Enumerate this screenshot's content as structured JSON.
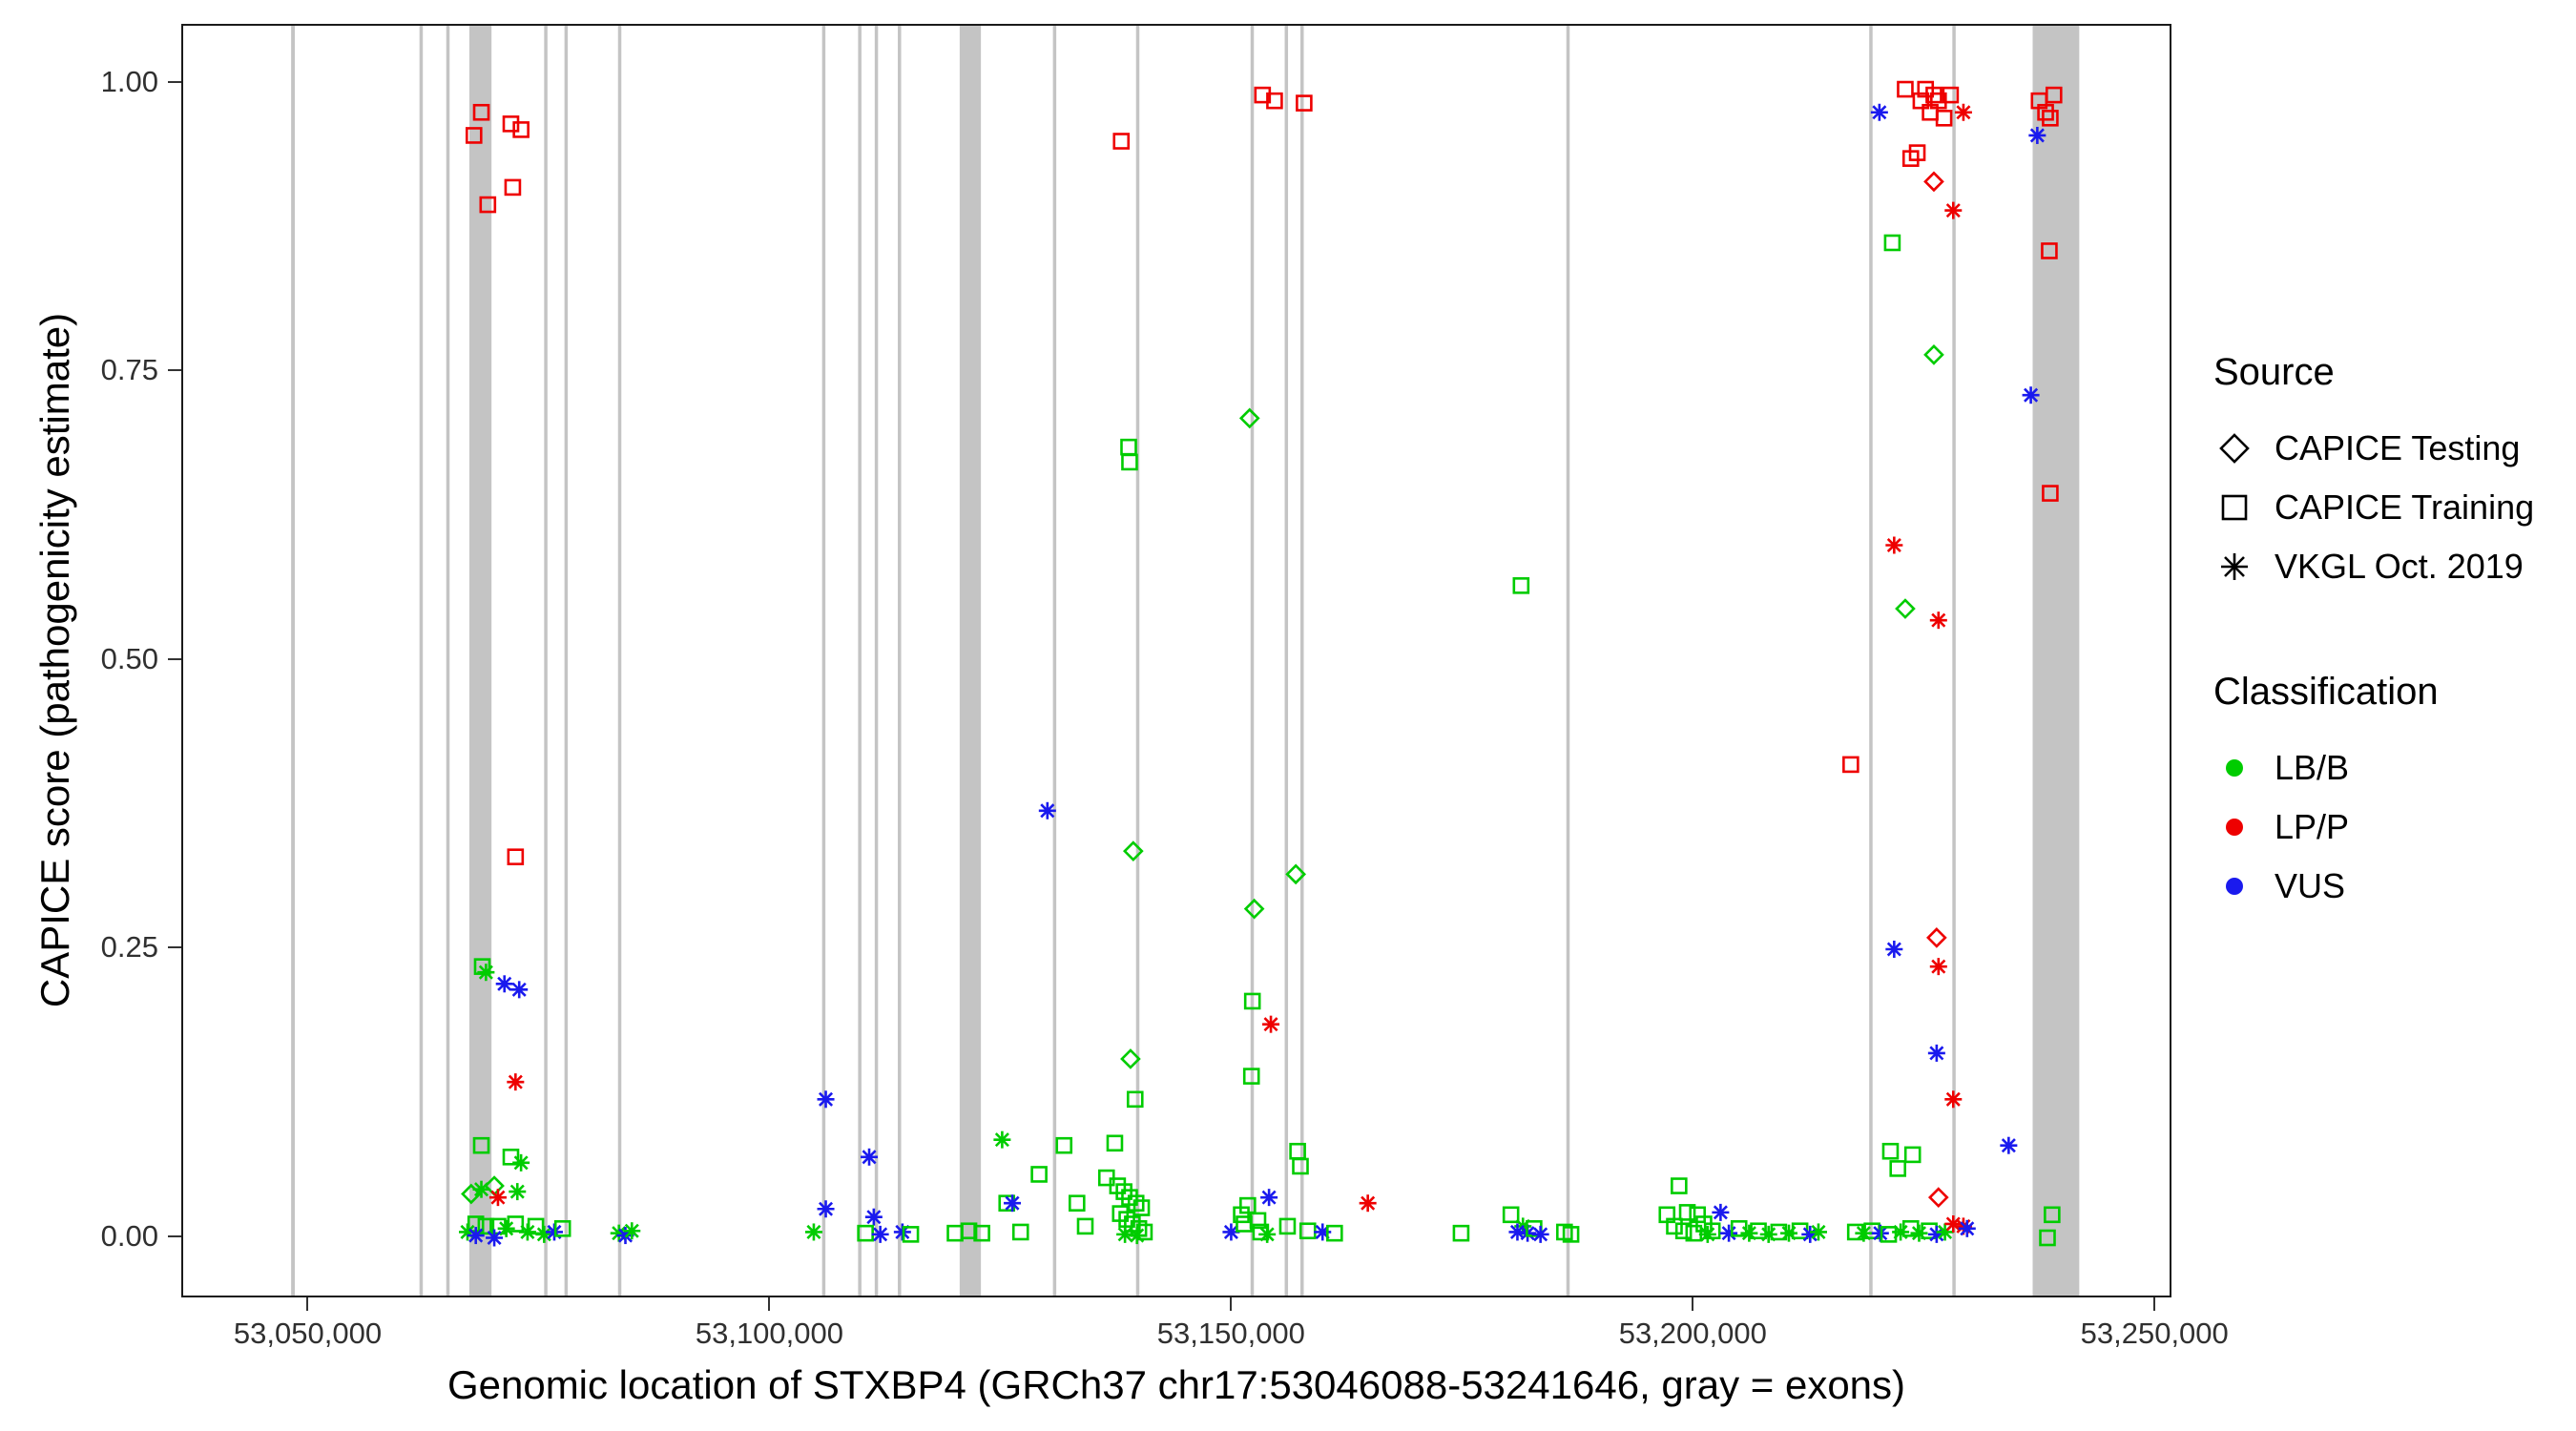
{
  "chart_data": {
    "type": "scatter",
    "title": "",
    "xlabel": "Genomic location of STXBP4 (GRCh37 chr17:53046088-53241646, gray = exons)",
    "ylabel": "CAPICE score (pathogenicity estimate)",
    "xlim": [
      53036310,
      53251424
    ],
    "ylim": [
      -0.05,
      1.05
    ],
    "grid": "off",
    "xticks": [
      {
        "value": 53050000,
        "label": "53,050,000"
      },
      {
        "value": 53100000,
        "label": "53,100,000"
      },
      {
        "value": 53150000,
        "label": "53,150,000"
      },
      {
        "value": 53200000,
        "label": "53,200,000"
      },
      {
        "value": 53250000,
        "label": "53,250,000"
      }
    ],
    "yticks": [
      {
        "value": 0.0,
        "label": "0.00"
      },
      {
        "value": 0.25,
        "label": "0.25"
      },
      {
        "value": 0.5,
        "label": "0.50"
      },
      {
        "value": 0.75,
        "label": "0.75"
      },
      {
        "value": 1.0,
        "label": "1.00"
      }
    ],
    "legend": {
      "position": "right",
      "source": {
        "title": "Source",
        "items": [
          {
            "label": "CAPICE Testing",
            "shape": "diamond",
            "source_key": "testing"
          },
          {
            "label": "CAPICE Training",
            "shape": "square",
            "source_key": "training"
          },
          {
            "label": "VKGL Oct. 2019",
            "shape": "asterisk",
            "source_key": "vkgl"
          }
        ]
      },
      "classification": {
        "title": "Classification",
        "items": [
          {
            "label": "LB/B",
            "color": "#00cc00"
          },
          {
            "label": "LP/P",
            "color": "#ee0000"
          },
          {
            "label": "VUS",
            "color": "#1a1aee"
          }
        ]
      }
    },
    "exon_color": "#c4c4c4",
    "exons": [
      [
        53048000,
        53048400
      ],
      [
        53061900,
        53062200
      ],
      [
        53064800,
        53065100
      ],
      [
        53067300,
        53069700
      ],
      [
        53075400,
        53075700
      ],
      [
        53077600,
        53077900
      ],
      [
        53083400,
        53083700
      ],
      [
        53105500,
        53105800
      ],
      [
        53109400,
        53109700
      ],
      [
        53111200,
        53111500
      ],
      [
        53113700,
        53114000
      ],
      [
        53120400,
        53122700
      ],
      [
        53130500,
        53130800
      ],
      [
        53139500,
        53139800
      ],
      [
        53151900,
        53152200
      ],
      [
        53155600,
        53155900
      ],
      [
        53157300,
        53157600
      ],
      [
        53186100,
        53186400
      ],
      [
        53218900,
        53219200
      ],
      [
        53227900,
        53228200
      ],
      [
        53236600,
        53241646
      ]
    ],
    "point_format": [
      "genomic_position",
      "capice_score",
      "source",
      "classification"
    ],
    "points": [
      [
        53068600,
        0.975,
        "training",
        "LP/P"
      ],
      [
        53067800,
        0.955,
        "training",
        "LP/P"
      ],
      [
        53069300,
        0.895,
        "training",
        "LP/P"
      ],
      [
        53071800,
        0.965,
        "training",
        "LP/P"
      ],
      [
        53072900,
        0.96,
        "training",
        "LP/P"
      ],
      [
        53072000,
        0.91,
        "training",
        "LP/P"
      ],
      [
        53072300,
        0.33,
        "training",
        "LP/P"
      ],
      [
        53068700,
        0.235,
        "training",
        "LB/B"
      ],
      [
        53069100,
        0.23,
        "vkgl",
        "LB/B"
      ],
      [
        53071100,
        0.22,
        "vkgl",
        "VUS"
      ],
      [
        53072700,
        0.215,
        "vkgl",
        "VUS"
      ],
      [
        53072300,
        0.135,
        "vkgl",
        "LP/P"
      ],
      [
        53068600,
        0.08,
        "training",
        "LB/B"
      ],
      [
        53071800,
        0.07,
        "training",
        "LB/B"
      ],
      [
        53072900,
        0.065,
        "vkgl",
        "LB/B"
      ],
      [
        53067500,
        0.038,
        "testing",
        "LB/B"
      ],
      [
        53068600,
        0.042,
        "vkgl",
        "LB/B"
      ],
      [
        53070000,
        0.045,
        "testing",
        "LB/B"
      ],
      [
        53070400,
        0.035,
        "vkgl",
        "LP/P"
      ],
      [
        53072500,
        0.04,
        "vkgl",
        "LB/B"
      ],
      [
        53068000,
        0.012,
        "training",
        "LB/B"
      ],
      [
        53069100,
        0.01,
        "training",
        "LB/B"
      ],
      [
        53067100,
        0.005,
        "vkgl",
        "LB/B"
      ],
      [
        53068000,
        0.002,
        "vkgl",
        "VUS"
      ],
      [
        53070400,
        0.01,
        "training",
        "LB/B"
      ],
      [
        53071300,
        0.008,
        "vkgl",
        "LB/B"
      ],
      [
        53072300,
        0.012,
        "training",
        "LB/B"
      ],
      [
        53070000,
        0.0,
        "vkgl",
        "VUS"
      ],
      [
        53073600,
        0.005,
        "vkgl",
        "LB/B"
      ],
      [
        53074500,
        0.01,
        "training",
        "LB/B"
      ],
      [
        53075400,
        0.003,
        "vkgl",
        "LB/B"
      ],
      [
        53076500,
        0.005,
        "vkgl",
        "VUS"
      ],
      [
        53077400,
        0.008,
        "training",
        "LB/B"
      ],
      [
        53083500,
        0.004,
        "vkgl",
        "LB/B"
      ],
      [
        53084200,
        0.002,
        "vkgl",
        "VUS"
      ],
      [
        53084900,
        0.006,
        "vkgl",
        "LB/B"
      ],
      [
        53105900,
        0.12,
        "vkgl",
        "VUS"
      ],
      [
        53105900,
        0.025,
        "vkgl",
        "VUS"
      ],
      [
        53104600,
        0.005,
        "vkgl",
        "LB/B"
      ],
      [
        53110600,
        0.07,
        "vkgl",
        "VUS"
      ],
      [
        53111100,
        0.018,
        "vkgl",
        "VUS"
      ],
      [
        53110200,
        0.004,
        "training",
        "LB/B"
      ],
      [
        53111800,
        0.003,
        "vkgl",
        "VUS"
      ],
      [
        53114200,
        0.005,
        "vkgl",
        "VUS"
      ],
      [
        53115100,
        0.003,
        "training",
        "LB/B"
      ],
      [
        53119900,
        0.004,
        "training",
        "LB/B"
      ],
      [
        53121400,
        0.006,
        "training",
        "LB/B"
      ],
      [
        53122800,
        0.004,
        "training",
        "LB/B"
      ],
      [
        53125000,
        0.085,
        "vkgl",
        "LB/B"
      ],
      [
        53125500,
        0.03,
        "training",
        "LB/B"
      ],
      [
        53126100,
        0.03,
        "vkgl",
        "VUS"
      ],
      [
        53127000,
        0.005,
        "training",
        "LB/B"
      ],
      [
        53129000,
        0.055,
        "training",
        "LB/B"
      ],
      [
        53129900,
        0.37,
        "vkgl",
        "VUS"
      ],
      [
        53131700,
        0.08,
        "training",
        "LB/B"
      ],
      [
        53133100,
        0.03,
        "training",
        "LB/B"
      ],
      [
        53134000,
        0.01,
        "training",
        "LB/B"
      ],
      [
        53137900,
        0.95,
        "training",
        "LP/P"
      ],
      [
        53138700,
        0.685,
        "training",
        "LB/B"
      ],
      [
        53138800,
        0.672,
        "training",
        "LB/B"
      ],
      [
        53139200,
        0.335,
        "testing",
        "LB/B"
      ],
      [
        53138900,
        0.155,
        "testing",
        "LB/B"
      ],
      [
        53139400,
        0.12,
        "training",
        "LB/B"
      ],
      [
        53137200,
        0.082,
        "training",
        "LB/B"
      ],
      [
        53136300,
        0.052,
        "training",
        "LB/B"
      ],
      [
        53137500,
        0.045,
        "training",
        "LB/B"
      ],
      [
        53138200,
        0.04,
        "training",
        "LB/B"
      ],
      [
        53138800,
        0.035,
        "training",
        "LB/B"
      ],
      [
        53139500,
        0.03,
        "training",
        "LB/B"
      ],
      [
        53140100,
        0.026,
        "training",
        "LB/B"
      ],
      [
        53137800,
        0.021,
        "training",
        "LB/B"
      ],
      [
        53138500,
        0.016,
        "training",
        "LB/B"
      ],
      [
        53139100,
        0.012,
        "training",
        "LB/B"
      ],
      [
        53139800,
        0.008,
        "training",
        "LB/B"
      ],
      [
        53140400,
        0.005,
        "training",
        "LB/B"
      ],
      [
        53138300,
        0.003,
        "vkgl",
        "LB/B"
      ],
      [
        53139600,
        0.002,
        "vkgl",
        "LB/B"
      ],
      [
        53149800,
        0.005,
        "vkgl",
        "VUS"
      ],
      [
        53151800,
        0.71,
        "testing",
        "LB/B"
      ],
      [
        53153200,
        0.99,
        "training",
        "LP/P"
      ],
      [
        53154500,
        0.985,
        "training",
        "LP/P"
      ],
      [
        53157700,
        0.983,
        "training",
        "LP/P"
      ],
      [
        53152300,
        0.285,
        "testing",
        "LB/B"
      ],
      [
        53156800,
        0.315,
        "testing",
        "LB/B"
      ],
      [
        53152100,
        0.205,
        "training",
        "LB/B"
      ],
      [
        53154100,
        0.185,
        "vkgl",
        "LP/P"
      ],
      [
        53152000,
        0.14,
        "training",
        "LB/B"
      ],
      [
        53157000,
        0.075,
        "training",
        "LB/B"
      ],
      [
        53157300,
        0.062,
        "training",
        "LB/B"
      ],
      [
        53153900,
        0.035,
        "vkgl",
        "VUS"
      ],
      [
        53151600,
        0.028,
        "training",
        "LB/B"
      ],
      [
        53150900,
        0.02,
        "training",
        "LB/B"
      ],
      [
        53151200,
        0.012,
        "training",
        "LB/B"
      ],
      [
        53152700,
        0.015,
        "training",
        "LB/B"
      ],
      [
        53153000,
        0.005,
        "training",
        "LB/B"
      ],
      [
        53153700,
        0.003,
        "vkgl",
        "LB/B"
      ],
      [
        53155900,
        0.01,
        "training",
        "LB/B"
      ],
      [
        53158100,
        0.006,
        "training",
        "LB/B"
      ],
      [
        53159700,
        0.005,
        "vkgl",
        "VUS"
      ],
      [
        53161000,
        0.004,
        "training",
        "LB/B"
      ],
      [
        53164600,
        0.03,
        "vkgl",
        "LP/P"
      ],
      [
        53174700,
        0.004,
        "training",
        "LB/B"
      ],
      [
        53181200,
        0.565,
        "training",
        "LB/B"
      ],
      [
        53180100,
        0.02,
        "training",
        "LB/B"
      ],
      [
        53181400,
        0.01,
        "vkgl",
        "LB/B"
      ],
      [
        53180800,
        0.005,
        "vkgl",
        "VUS"
      ],
      [
        53181900,
        0.004,
        "vkgl",
        "VUS"
      ],
      [
        53182600,
        0.008,
        "training",
        "LB/B"
      ],
      [
        53183300,
        0.003,
        "vkgl",
        "VUS"
      ],
      [
        53185900,
        0.005,
        "training",
        "LB/B"
      ],
      [
        53186600,
        0.003,
        "training",
        "LB/B"
      ],
      [
        53198300,
        0.045,
        "training",
        "LB/B"
      ],
      [
        53197000,
        0.02,
        "training",
        "LB/B"
      ],
      [
        53199200,
        0.022,
        "training",
        "LB/B"
      ],
      [
        53200300,
        0.02,
        "training",
        "LB/B"
      ],
      [
        53197800,
        0.01,
        "training",
        "LB/B"
      ],
      [
        53198800,
        0.006,
        "training",
        "LB/B"
      ],
      [
        53199900,
        0.004,
        "training",
        "LB/B"
      ],
      [
        53201000,
        0.012,
        "training",
        "LB/B"
      ],
      [
        53201900,
        0.006,
        "training",
        "LB/B"
      ],
      [
        53202800,
        0.022,
        "vkgl",
        "VUS"
      ],
      [
        53201400,
        0.003,
        "vkgl",
        "LB/B"
      ],
      [
        53203700,
        0.004,
        "vkgl",
        "VUS"
      ],
      [
        53204800,
        0.008,
        "training",
        "LB/B"
      ],
      [
        53205900,
        0.004,
        "vkgl",
        "LB/B"
      ],
      [
        53206900,
        0.006,
        "training",
        "LB/B"
      ],
      [
        53208000,
        0.003,
        "vkgl",
        "LB/B"
      ],
      [
        53209100,
        0.005,
        "training",
        "LB/B"
      ],
      [
        53210200,
        0.004,
        "vkgl",
        "LB/B"
      ],
      [
        53211400,
        0.006,
        "training",
        "LB/B"
      ],
      [
        53212500,
        0.003,
        "vkgl",
        "VUS"
      ],
      [
        53213400,
        0.005,
        "vkgl",
        "LB/B"
      ],
      [
        53216900,
        0.41,
        "training",
        "LP/P"
      ],
      [
        53220000,
        0.975,
        "vkgl",
        "VUS"
      ],
      [
        53221400,
        0.862,
        "training",
        "LB/B"
      ],
      [
        53221600,
        0.6,
        "vkgl",
        "LP/P"
      ],
      [
        53221600,
        0.25,
        "vkgl",
        "VUS"
      ],
      [
        53221200,
        0.075,
        "training",
        "LB/B"
      ],
      [
        53222000,
        0.06,
        "training",
        "LB/B"
      ],
      [
        53222800,
        0.995,
        "training",
        "LP/P"
      ],
      [
        53223400,
        0.935,
        "training",
        "LP/P"
      ],
      [
        53224100,
        0.94,
        "training",
        "LP/P"
      ],
      [
        53224500,
        0.985,
        "training",
        "LP/P"
      ],
      [
        53225000,
        0.995,
        "training",
        "LP/P"
      ],
      [
        53225500,
        0.975,
        "training",
        "LP/P"
      ],
      [
        53225900,
        0.99,
        "training",
        "LP/P"
      ],
      [
        53226400,
        0.985,
        "training",
        "LP/P"
      ],
      [
        53227000,
        0.97,
        "training",
        "LP/P"
      ],
      [
        53227700,
        0.99,
        "training",
        "LP/P"
      ],
      [
        53225900,
        0.915,
        "testing",
        "LP/P"
      ],
      [
        53229100,
        0.975,
        "vkgl",
        "LP/P"
      ],
      [
        53228000,
        0.89,
        "vkgl",
        "LP/P"
      ],
      [
        53225900,
        0.765,
        "testing",
        "LB/B"
      ],
      [
        53222800,
        0.545,
        "testing",
        "LB/B"
      ],
      [
        53226400,
        0.535,
        "vkgl",
        "LP/P"
      ],
      [
        53226200,
        0.26,
        "testing",
        "LP/P"
      ],
      [
        53226400,
        0.235,
        "vkgl",
        "LP/P"
      ],
      [
        53226200,
        0.16,
        "vkgl",
        "VUS"
      ],
      [
        53228000,
        0.12,
        "vkgl",
        "LP/P"
      ],
      [
        53217400,
        0.005,
        "training",
        "LB/B"
      ],
      [
        53218300,
        0.004,
        "vkgl",
        "LB/B"
      ],
      [
        53219200,
        0.006,
        "training",
        "LB/B"
      ],
      [
        53220100,
        0.004,
        "vkgl",
        "VUS"
      ],
      [
        53221000,
        0.003,
        "training",
        "LB/B"
      ],
      [
        53222300,
        0.005,
        "vkgl",
        "LB/B"
      ],
      [
        53223400,
        0.008,
        "training",
        "LB/B"
      ],
      [
        53223600,
        0.072,
        "training",
        "LB/B"
      ],
      [
        53224300,
        0.004,
        "vkgl",
        "LB/B"
      ],
      [
        53225400,
        0.006,
        "training",
        "LB/B"
      ],
      [
        53226200,
        0.003,
        "vkgl",
        "VUS"
      ],
      [
        53226400,
        0.035,
        "testing",
        "LP/P"
      ],
      [
        53227100,
        0.005,
        "vkgl",
        "LB/B"
      ],
      [
        53228000,
        0.012,
        "vkgl",
        "LP/P"
      ],
      [
        53229100,
        0.01,
        "vkgl",
        "LP/P"
      ],
      [
        53229500,
        0.008,
        "vkgl",
        "VUS"
      ],
      [
        53234000,
        0.08,
        "vkgl",
        "VUS"
      ],
      [
        53236400,
        0.73,
        "vkgl",
        "VUS"
      ],
      [
        53237100,
        0.955,
        "vkgl",
        "VUS"
      ],
      [
        53237300,
        0.985,
        "training",
        "LP/P"
      ],
      [
        53238000,
        0.975,
        "training",
        "LP/P"
      ],
      [
        53238500,
        0.97,
        "training",
        "LP/P"
      ],
      [
        53238900,
        0.99,
        "training",
        "LP/P"
      ],
      [
        53238400,
        0.855,
        "training",
        "LP/P"
      ],
      [
        53238500,
        0.645,
        "training",
        "LP/P"
      ],
      [
        53238700,
        0.02,
        "training",
        "LB/B"
      ],
      [
        53238200,
        0.0,
        "training",
        "LB/B"
      ]
    ]
  }
}
